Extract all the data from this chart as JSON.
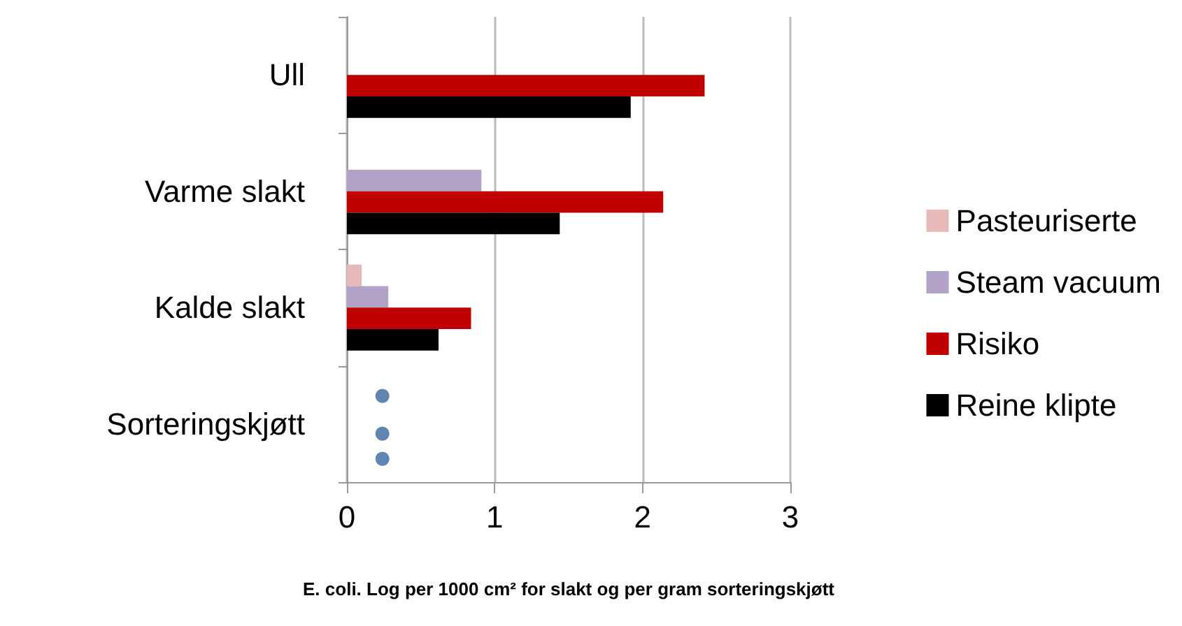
{
  "chart_data": {
    "type": "bar",
    "orientation": "horizontal",
    "xlabel": "E. coli. Log per 1000 cm² for slakt og per gram sorteringskjøtt",
    "categories": [
      "Ull",
      "Varme slakt",
      "Kalde slakt",
      "Sorteringskjøtt"
    ],
    "series": [
      {
        "name": "Pasteuriserte",
        "color": "#e6b9b8",
        "values": [
          null,
          null,
          0.1,
          null
        ]
      },
      {
        "name": "Steam vacuum",
        "color": "#b3a2c7",
        "values": [
          null,
          0.91,
          0.28,
          null
        ]
      },
      {
        "name": "Risiko",
        "color": "#c00000",
        "values": [
          2.42,
          2.14,
          0.84,
          null
        ]
      },
      {
        "name": "Reine klipte",
        "color": "#000000",
        "values": [
          1.92,
          1.44,
          0.62,
          null
        ]
      },
      {
        "type": "scatter",
        "color": "#3a66a0",
        "values": [
          null,
          null,
          null,
          0.24
        ]
      },
      {
        "type": "scatter",
        "color": "#3a66a0",
        "values": [
          null,
          null,
          null,
          0.24
        ]
      },
      {
        "type": "scatter",
        "color": "#3a66a0",
        "values": [
          null,
          null,
          null,
          0.24
        ]
      }
    ],
    "xlim": [
      0,
      3
    ],
    "xticks": [
      0,
      1,
      2,
      3
    ],
    "grid": "x",
    "legend": "right",
    "marker": "circle"
  }
}
